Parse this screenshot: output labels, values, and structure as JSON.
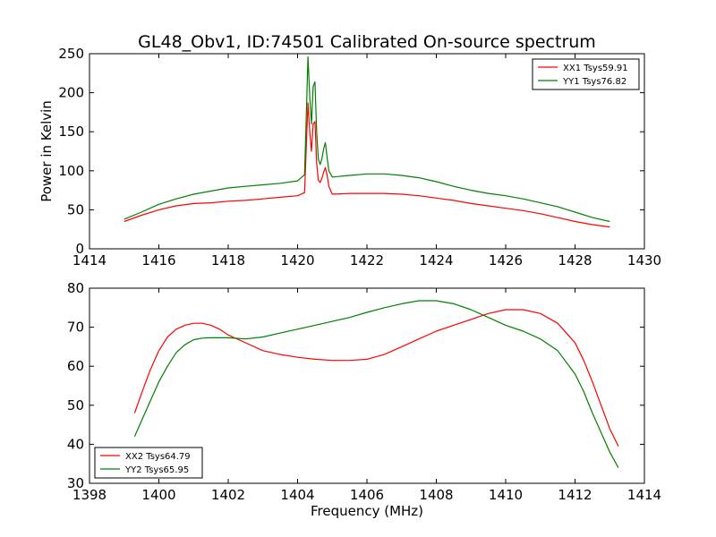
{
  "title": "GL48_Obv1, ID:74501 Calibrated On-source spectrum",
  "colors": {
    "xx": "#ff0000",
    "yy": "#008000"
  },
  "chart_data": [
    {
      "type": "line",
      "xlim": [
        1414,
        1430
      ],
      "ylim": [
        0,
        250
      ],
      "xticks": [
        "1414",
        "1416",
        "1418",
        "1420",
        "1422",
        "1424",
        "1426",
        "1428",
        "1430"
      ],
      "yticks": [
        "0",
        "50",
        "100",
        "150",
        "200",
        "250"
      ],
      "xlabel": "",
      "ylabel": "Power in Kelvin",
      "legend_position": "top-right",
      "series": [
        {
          "name": "XX1 Tsys59.91",
          "color": "#ff0000",
          "x": [
            1415,
            1415.5,
            1416,
            1416.5,
            1417,
            1417.5,
            1418,
            1418.5,
            1419,
            1419.5,
            1420.0,
            1420.2,
            1420.25,
            1420.3,
            1420.35,
            1420.4,
            1420.45,
            1420.5,
            1420.55,
            1420.6,
            1420.65,
            1420.7,
            1420.75,
            1420.8,
            1420.85,
            1420.9,
            1421.0,
            1421.5,
            1422,
            1422.5,
            1423,
            1423.5,
            1424,
            1424.5,
            1425,
            1425.5,
            1426,
            1426.5,
            1427,
            1427.5,
            1428,
            1428.5,
            1429
          ],
          "y": [
            35,
            43,
            50,
            55,
            58,
            59,
            61,
            62,
            64,
            66,
            68,
            72,
            130,
            187,
            150,
            125,
            160,
            163,
            110,
            88,
            85,
            90,
            98,
            104,
            95,
            80,
            70,
            71,
            71,
            71,
            70,
            68,
            65,
            62,
            58,
            55,
            52,
            49,
            45,
            40,
            35,
            31,
            28
          ]
        },
        {
          "name": "YY1 Tsys76.82",
          "color": "#008000",
          "x": [
            1415,
            1415.5,
            1416,
            1416.5,
            1417,
            1417.5,
            1418,
            1418.5,
            1419,
            1419.5,
            1420.0,
            1420.2,
            1420.25,
            1420.3,
            1420.35,
            1420.4,
            1420.45,
            1420.5,
            1420.55,
            1420.6,
            1420.65,
            1420.7,
            1420.75,
            1420.8,
            1420.85,
            1420.9,
            1421.0,
            1421.5,
            1422,
            1422.5,
            1423,
            1423.5,
            1424,
            1424.5,
            1425,
            1425.5,
            1426,
            1426.5,
            1427,
            1427.5,
            1428,
            1428.5,
            1429
          ],
          "y": [
            38,
            47,
            57,
            64,
            70,
            74,
            78,
            80,
            82,
            84,
            87,
            95,
            170,
            246,
            195,
            160,
            208,
            214,
            150,
            115,
            108,
            115,
            128,
            136,
            118,
            100,
            92,
            94,
            96,
            96,
            94,
            91,
            86,
            80,
            75,
            71,
            68,
            64,
            59,
            54,
            47,
            40,
            35
          ]
        }
      ]
    },
    {
      "type": "line",
      "xlim": [
        1398,
        1414
      ],
      "ylim": [
        30,
        80
      ],
      "xticks": [
        "1398",
        "1400",
        "1402",
        "1404",
        "1406",
        "1408",
        "1410",
        "1412",
        "1414"
      ],
      "yticks": [
        "30",
        "40",
        "50",
        "60",
        "70",
        "80"
      ],
      "xlabel": "Frequency (MHz)",
      "ylabel": "",
      "legend_position": "bottom-left",
      "series": [
        {
          "name": "XX2 Tsys64.79",
          "color": "#ff0000",
          "x": [
            1399.3,
            1399.5,
            1399.75,
            1400,
            1400.25,
            1400.5,
            1400.75,
            1401,
            1401.25,
            1401.5,
            1401.75,
            1402,
            1402.5,
            1403,
            1403.5,
            1404,
            1404.5,
            1405,
            1405.5,
            1406,
            1406.5,
            1407,
            1407.5,
            1408,
            1408.5,
            1409,
            1409.5,
            1410,
            1410.5,
            1411,
            1411.5,
            1412,
            1412.25,
            1412.5,
            1412.75,
            1413,
            1413.25
          ],
          "y": [
            48,
            53,
            59,
            64,
            67.5,
            69.5,
            70.5,
            71,
            71,
            70.5,
            69.5,
            68,
            66,
            64,
            63,
            62.3,
            61.8,
            61.5,
            61.5,
            61.8,
            63,
            65,
            67,
            69,
            70.5,
            72,
            73.5,
            74.5,
            74.5,
            73.5,
            71,
            66,
            61.5,
            56,
            50,
            44,
            39.5
          ]
        },
        {
          "name": "YY2 Tsys65.95",
          "color": "#008000",
          "x": [
            1399.3,
            1399.5,
            1399.75,
            1400,
            1400.25,
            1400.5,
            1400.75,
            1401,
            1401.25,
            1401.5,
            1401.75,
            1402,
            1402.5,
            1403,
            1403.5,
            1404,
            1404.5,
            1405,
            1405.5,
            1406,
            1406.5,
            1407,
            1407.5,
            1408,
            1408.5,
            1409,
            1409.5,
            1410,
            1410.5,
            1411,
            1411.5,
            1412,
            1412.25,
            1412.5,
            1412.75,
            1413,
            1413.25
          ],
          "y": [
            42,
            46,
            51,
            56,
            60,
            63.5,
            65.5,
            66.8,
            67.2,
            67.3,
            67.3,
            67.3,
            67,
            67.5,
            68.5,
            69.5,
            70.5,
            71.5,
            72.5,
            73.8,
            75,
            76,
            76.8,
            76.8,
            76,
            74.5,
            72.5,
            70.5,
            69,
            67,
            64,
            58,
            53.5,
            48,
            43,
            38,
            34
          ]
        }
      ]
    }
  ]
}
